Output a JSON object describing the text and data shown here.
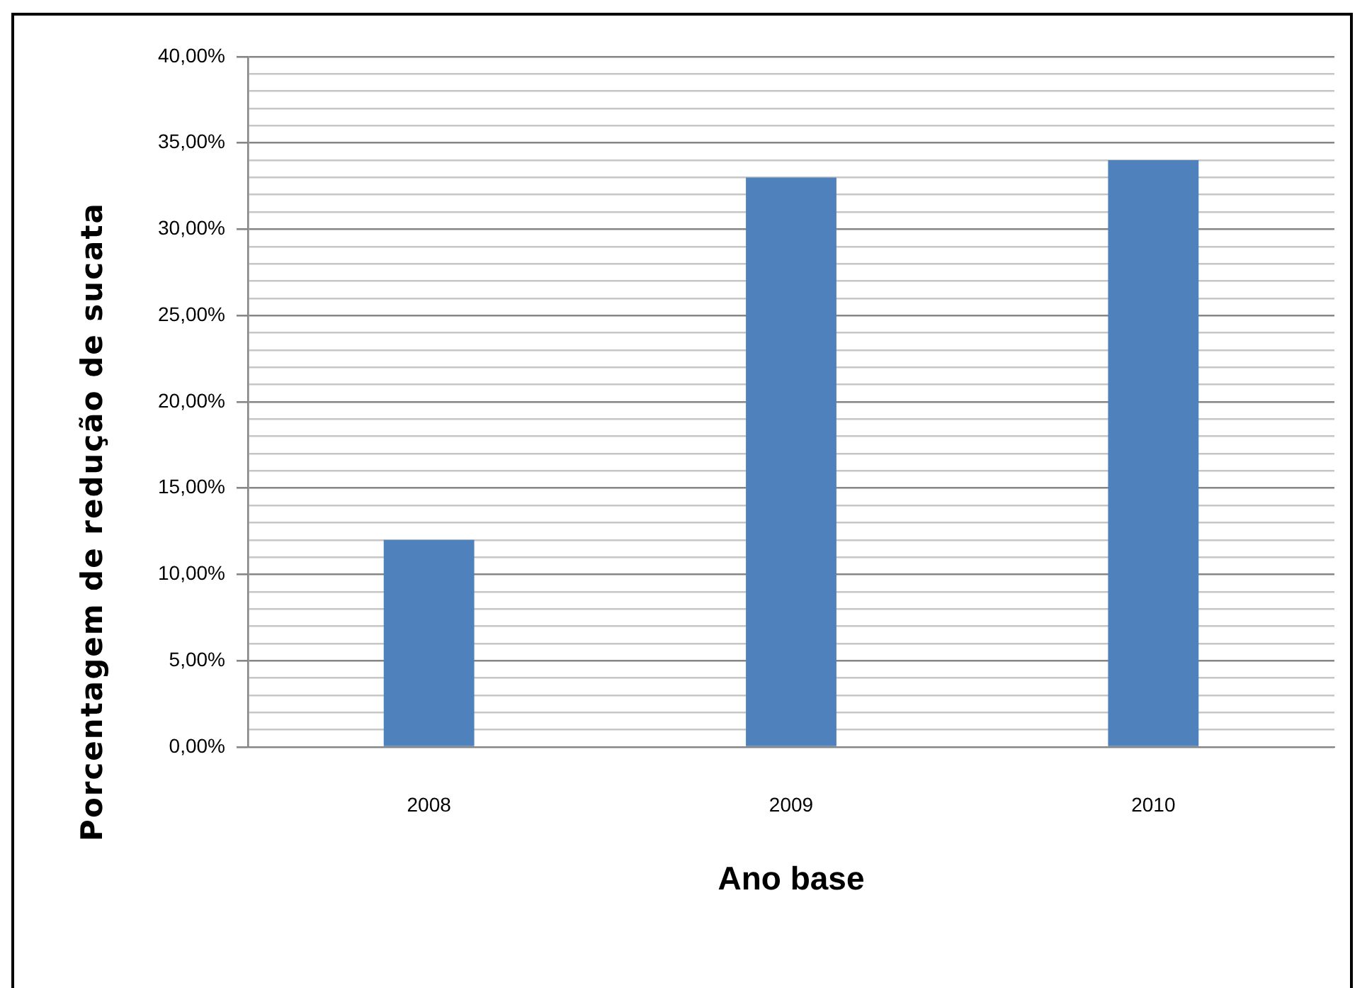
{
  "chart_data": {
    "type": "bar",
    "xlabel": "Ano base",
    "ylabel": "Porcentagem de redução de sucata",
    "categories": [
      "2008",
      "2009",
      "2010"
    ],
    "values": [
      12,
      33,
      34
    ],
    "color": "#4f81bd",
    "ylim": [
      0,
      40
    ],
    "yticks": [
      {
        "value": 0,
        "label": "0,00%"
      },
      {
        "value": 1,
        "label": null
      },
      {
        "value": 2,
        "label": null
      },
      {
        "value": 3,
        "label": null
      },
      {
        "value": 4,
        "label": null
      },
      {
        "value": 5,
        "label": "5,00%"
      },
      {
        "value": 6,
        "label": null
      },
      {
        "value": 7,
        "label": null
      },
      {
        "value": 8,
        "label": null
      },
      {
        "value": 9,
        "label": null
      },
      {
        "value": 10,
        "label": "10,00%"
      },
      {
        "value": 11,
        "label": null
      },
      {
        "value": 12,
        "label": null
      },
      {
        "value": 13,
        "label": null
      },
      {
        "value": 14,
        "label": null
      },
      {
        "value": 15,
        "label": "15,00%"
      },
      {
        "value": 16,
        "label": null
      },
      {
        "value": 17,
        "label": null
      },
      {
        "value": 18,
        "label": null
      },
      {
        "value": 19,
        "label": null
      },
      {
        "value": 20,
        "label": "20,00%"
      },
      {
        "value": 21,
        "label": null
      },
      {
        "value": 22,
        "label": null
      },
      {
        "value": 23,
        "label": null
      },
      {
        "value": 24,
        "label": null
      },
      {
        "value": 25,
        "label": "25,00%"
      },
      {
        "value": 26,
        "label": null
      },
      {
        "value": 27,
        "label": null
      },
      {
        "value": 28,
        "label": null
      },
      {
        "value": 29,
        "label": null
      },
      {
        "value": 30,
        "label": "30,00%"
      },
      {
        "value": 31,
        "label": null
      },
      {
        "value": 32,
        "label": null
      },
      {
        "value": 33,
        "label": null
      },
      {
        "value": 34,
        "label": null
      },
      {
        "value": 35,
        "label": "35,00%"
      },
      {
        "value": 36,
        "label": null
      },
      {
        "value": 37,
        "label": null
      },
      {
        "value": 38,
        "label": null
      },
      {
        "value": 39,
        "label": null
      },
      {
        "value": 40,
        "label": "40,00%"
      }
    ],
    "grid": "y"
  }
}
